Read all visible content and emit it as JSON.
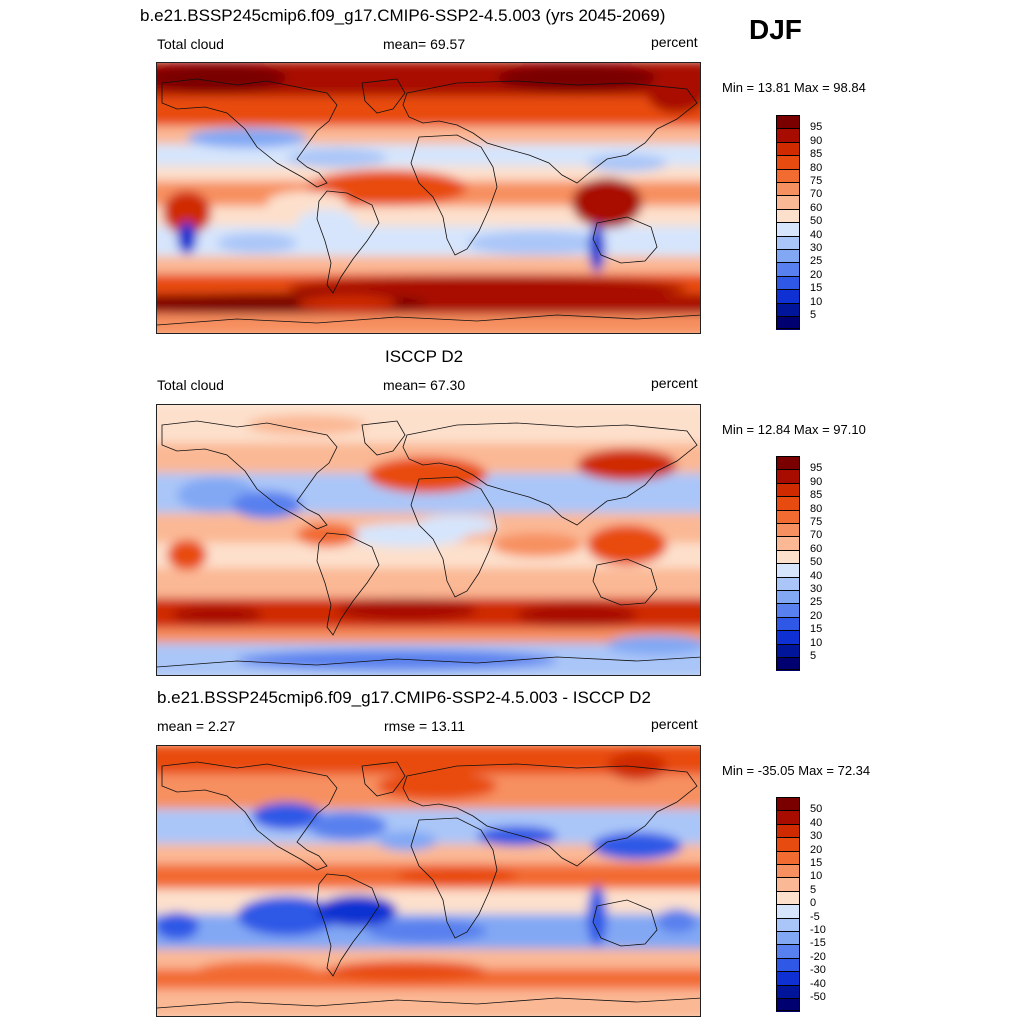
{
  "season": "DJF",
  "panels": [
    {
      "title": "b.e21.BSSP245cmip6.f09_g17.CMIP6-SSP2-4.5.003 (yrs 2045-2069)",
      "left": "Total cloud",
      "center": "mean=  69.57",
      "right": "percent",
      "minmax": "Min =  13.81 Max =  98.84",
      "scale": "abs",
      "labels": [
        "95",
        "90",
        "85",
        "80",
        "75",
        "70",
        "60",
        "50",
        "40",
        "30",
        "25",
        "20",
        "15",
        "10",
        "5"
      ]
    },
    {
      "title": "ISCCP D2",
      "left": "Total cloud",
      "center": "mean=  67.30",
      "right": "percent",
      "minmax": "Min =  12.84 Max =  97.10",
      "scale": "abs",
      "labels": [
        "95",
        "90",
        "85",
        "80",
        "75",
        "70",
        "60",
        "50",
        "40",
        "30",
        "25",
        "20",
        "15",
        "10",
        "5"
      ]
    },
    {
      "title": "b.e21.BSSP245cmip6.f09_g17.CMIP6-SSP2-4.5.003 - ISCCP D2",
      "left": "mean =   2.27",
      "center": "rmse =  13.11",
      "right": "percent",
      "minmax": "Min = -35.05 Max =  72.34",
      "scale": "diff",
      "labels": [
        "50",
        "40",
        "30",
        "20",
        "15",
        "10",
        "5",
        "0",
        "-5",
        "-10",
        "-15",
        "-20",
        "-30",
        "-40",
        "-50"
      ]
    }
  ],
  "colors": {
    "scale": [
      "#7a0000",
      "#a80b00",
      "#cf2a00",
      "#e84b10",
      "#f26b30",
      "#f79060",
      "#fbb894",
      "#fde0cc",
      "#fff6ea",
      "#d6e5fc",
      "#aac6f8",
      "#82a8f4",
      "#5880ee",
      "#2f58e6",
      "#0f30d2",
      "#00159a",
      "#000070"
    ]
  }
}
